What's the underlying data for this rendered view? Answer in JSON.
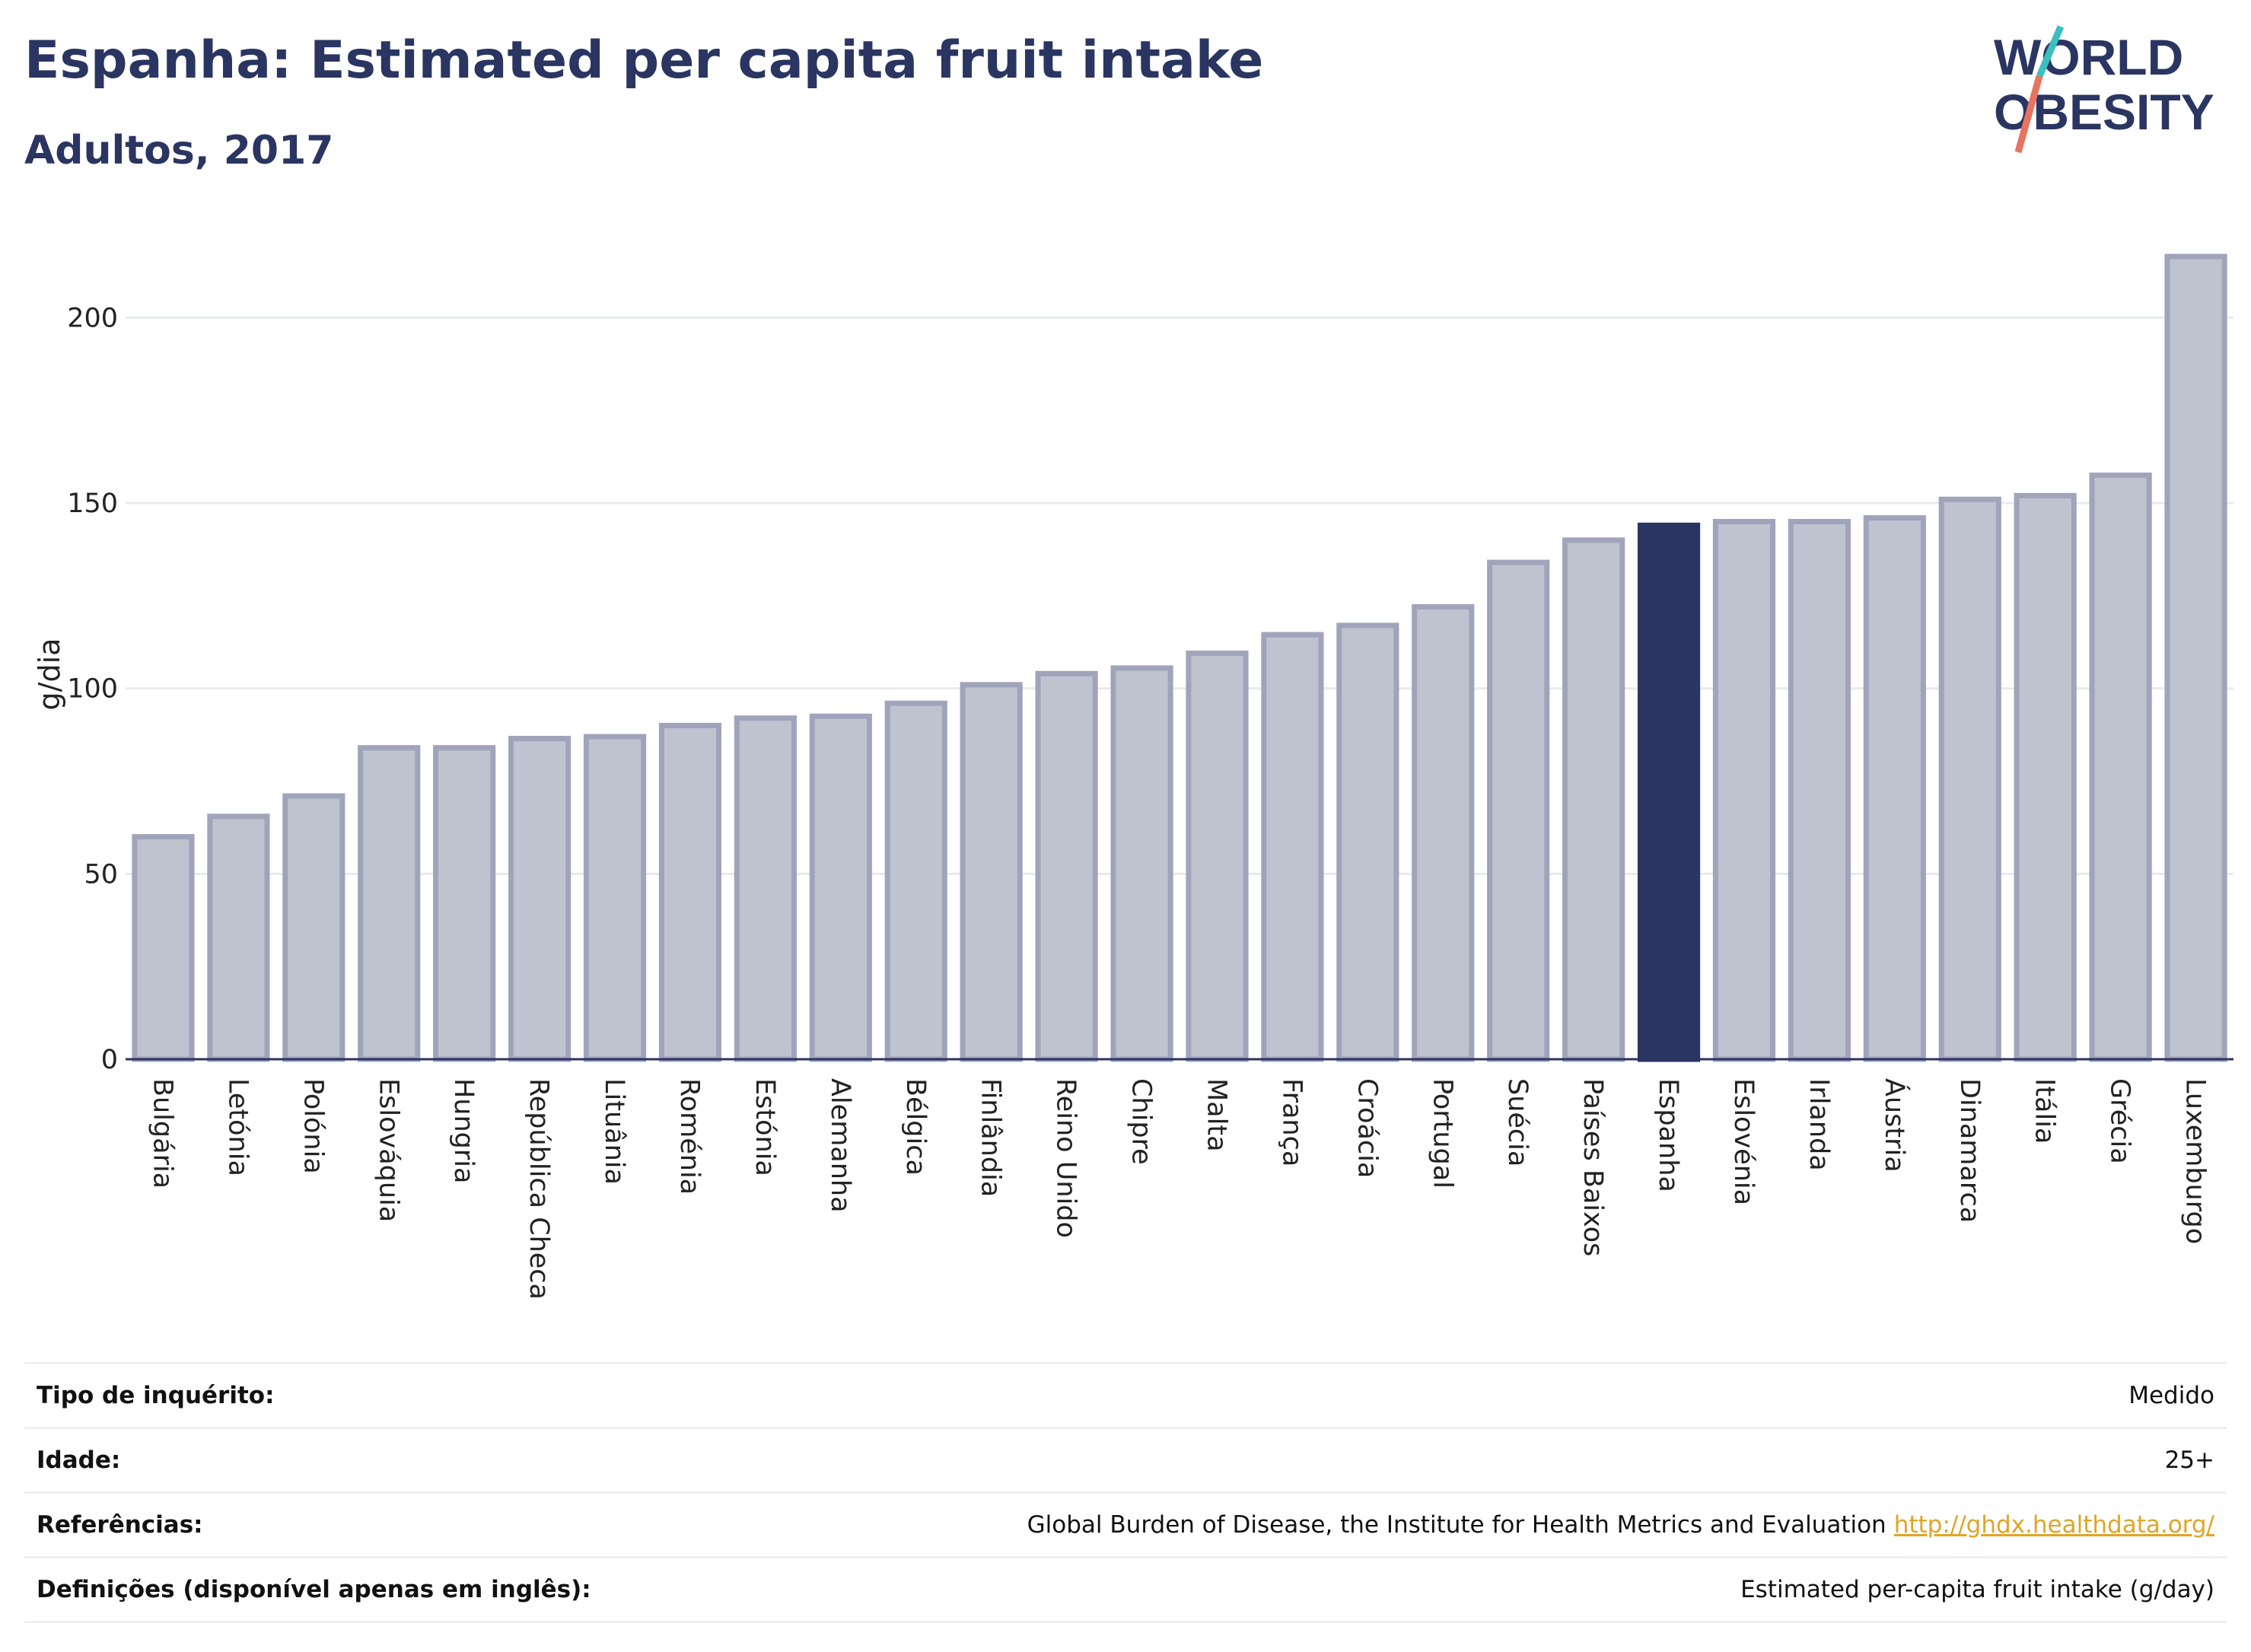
{
  "header": {
    "title": "Espanha: Estimated per capita fruit intake",
    "subtitle": "Adultos, 2017"
  },
  "logo": {
    "line1": "WORLD",
    "line2": "OBESITY"
  },
  "chart_data": {
    "type": "bar",
    "ylabel": "g/dia",
    "ylim": [
      0,
      220
    ],
    "yticks": [
      0,
      50,
      100,
      150,
      200
    ],
    "grid": true,
    "highlight": "Espanha",
    "colors": {
      "bar": "#bfc2cf",
      "bar_border": "#a0a4bb",
      "highlight": "#2a3561",
      "grid": "#e8eaee"
    },
    "categories": [
      "Bulgária",
      "Letónia",
      "Polónia",
      "Eslováquia",
      "Hungria",
      "República Checa",
      "Lituânia",
      "Roménia",
      "Estónia",
      "Alemanha",
      "Bélgica",
      "Finlândia",
      "Reino Unido",
      "Chipre",
      "Malta",
      "França",
      "Croácia",
      "Portugal",
      "Suécia",
      "Países Baixos",
      "Espanha",
      "Eslovénia",
      "Irlanda",
      "Áustria",
      "Dinamarca",
      "Itália",
      "Grécia",
      "Luxemburgo"
    ],
    "values": [
      60,
      65.5,
      71,
      84,
      84,
      86.5,
      87,
      90,
      92,
      92.5,
      96,
      101,
      104,
      105.5,
      109.5,
      114.5,
      117,
      122,
      134,
      140,
      144,
      145,
      145,
      146,
      151,
      152,
      157.5,
      216.5
    ]
  },
  "meta": {
    "rows": [
      {
        "label": "Tipo de inquérito:",
        "value": "Medido"
      },
      {
        "label": "Idade:",
        "value": "25+"
      },
      {
        "label": "Referências:",
        "value": "Global Burden of Disease, the Institute for Health Metrics and Evaluation",
        "link": "http://ghdx.healthdata.org/"
      },
      {
        "label": "Definições (disponível apenas em inglês):",
        "value": "Estimated per-capita fruit intake (g/day)"
      }
    ]
  }
}
